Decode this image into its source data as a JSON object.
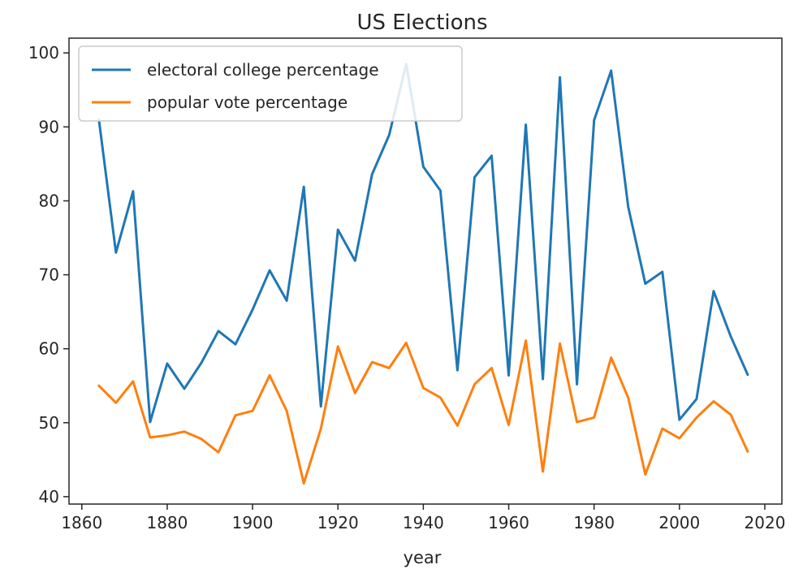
{
  "chart_data": {
    "type": "line",
    "title": "US Elections",
    "xlabel": "year",
    "ylabel": "",
    "xlim": [
      1857,
      2024
    ],
    "ylim": [
      39,
      102
    ],
    "xticks": [
      1860,
      1880,
      1900,
      1920,
      1940,
      1960,
      1980,
      2000,
      2020
    ],
    "yticks": [
      40,
      50,
      60,
      70,
      80,
      90,
      100
    ],
    "grid": false,
    "legend_position": "upper left",
    "x": [
      1864,
      1868,
      1872,
      1876,
      1880,
      1884,
      1888,
      1892,
      1896,
      1900,
      1904,
      1908,
      1912,
      1916,
      1920,
      1924,
      1928,
      1932,
      1936,
      1940,
      1944,
      1948,
      1952,
      1956,
      1960,
      1964,
      1968,
      1972,
      1976,
      1980,
      1984,
      1988,
      1992,
      1996,
      2000,
      2004,
      2008,
      2012,
      2016
    ],
    "series": [
      {
        "name": "electoral college percentage",
        "color": "#1f77b4",
        "values": [
          91.0,
          73.0,
          81.3,
          50.1,
          58.0,
          54.6,
          58.1,
          62.4,
          60.6,
          65.3,
          70.6,
          66.5,
          81.9,
          52.2,
          76.1,
          71.9,
          83.6,
          88.9,
          98.5,
          84.6,
          81.4,
          57.1,
          83.2,
          86.1,
          56.4,
          90.3,
          55.9,
          96.7,
          55.2,
          90.9,
          97.6,
          79.2,
          68.8,
          70.4,
          50.4,
          53.2,
          67.8,
          61.7,
          56.5
        ]
      },
      {
        "name": "popular vote percentage",
        "color": "#ff7f0e",
        "values": [
          55.0,
          52.7,
          55.6,
          48.0,
          48.3,
          48.8,
          47.8,
          46.0,
          51.0,
          51.6,
          56.4,
          51.6,
          41.8,
          49.2,
          60.3,
          54.0,
          58.2,
          57.4,
          60.8,
          54.7,
          53.4,
          49.6,
          55.2,
          57.4,
          49.7,
          61.1,
          43.4,
          60.7,
          50.1,
          50.7,
          58.8,
          53.4,
          43.0,
          49.2,
          47.9,
          50.7,
          52.9,
          51.1,
          46.1
        ]
      }
    ]
  }
}
